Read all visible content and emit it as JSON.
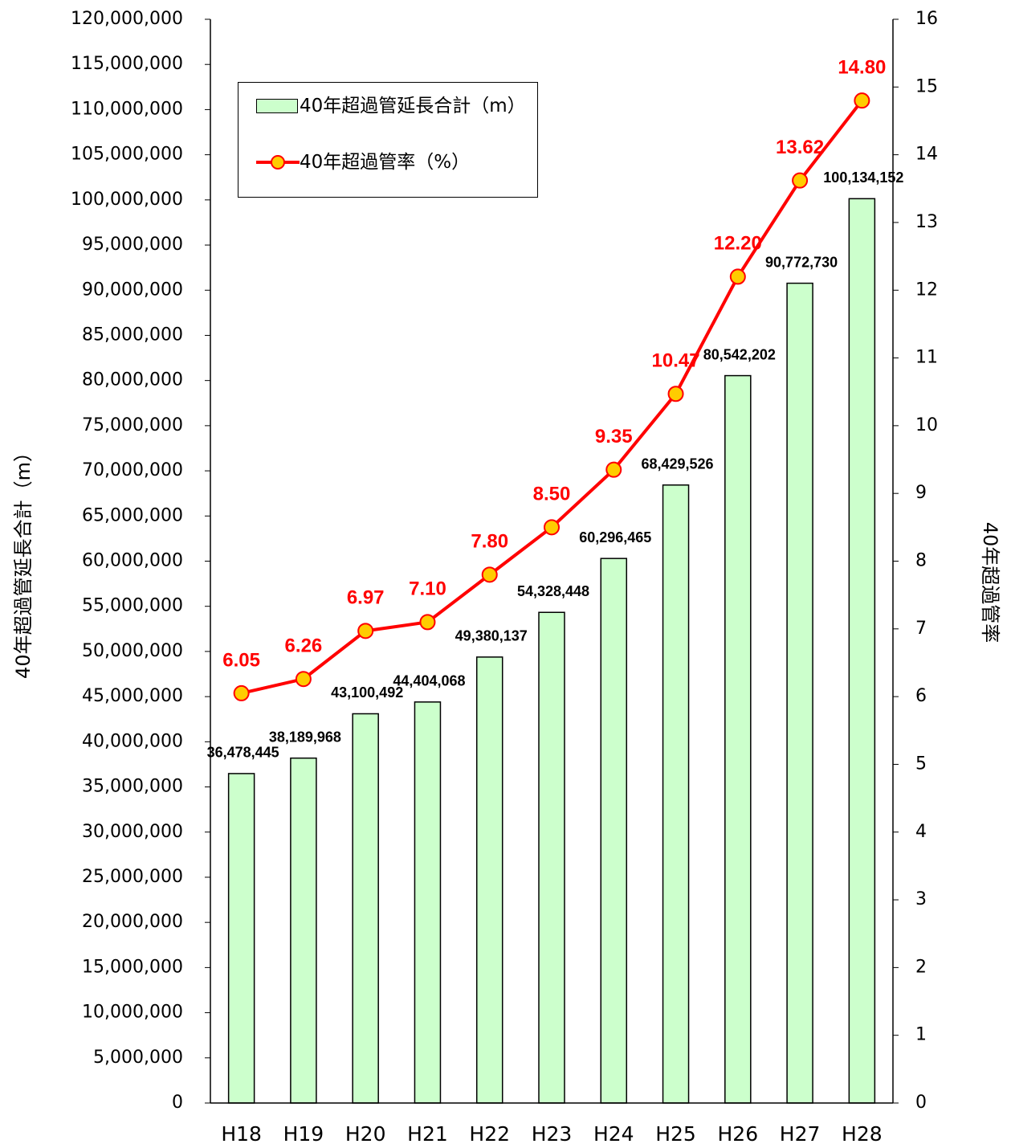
{
  "chart_data": {
    "type": "bar-line",
    "y_label": "40年超過管延長合計（m）",
    "y2_label": "40年超過管率",
    "categories": [
      "H18",
      "H19",
      "H20",
      "H21",
      "H22",
      "H23",
      "H24",
      "H25",
      "H26",
      "H27",
      "H28"
    ],
    "series": [
      {
        "name": "40年超過管延長合計（m）",
        "type": "bar",
        "color": "#ccffcc",
        "values": [
          36478445,
          38189968,
          43100492,
          44404068,
          49380137,
          54328448,
          60296465,
          68429526,
          80542202,
          90772730,
          100134152
        ],
        "value_labels": [
          "36,478,445",
          "38,189,968",
          "43,100,492",
          "44,404,068",
          "49,380,137",
          "54,328,448",
          "60,296,465",
          "68,429,526",
          "80,542,202",
          "90,772,730",
          "100,134,152"
        ]
      },
      {
        "name": "40年超過管率（%）",
        "type": "line",
        "axis": "y2",
        "color": "#ff0000",
        "marker_color": "#ffcc00",
        "values": [
          6.05,
          6.26,
          6.97,
          7.1,
          7.8,
          8.5,
          9.35,
          10.47,
          12.2,
          13.62,
          14.8
        ],
        "value_labels": [
          "6.05",
          "6.26",
          "6.97",
          "7.10",
          "7.80",
          "8.50",
          "9.35",
          "10.47",
          "12.20",
          "13.62",
          "14.80"
        ]
      }
    ],
    "ylim": [
      0,
      120000000
    ],
    "yticks": [
      0,
      {
        "value": 5000000,
        "label": "5,000,000"
      },
      {
        "value": 10000000,
        "label": "10,000,000"
      },
      {
        "value": 15000000,
        "label": "15,000,000"
      },
      {
        "value": 20000000,
        "label": "20,000,000"
      },
      {
        "value": 25000000,
        "label": "25,000,000"
      },
      {
        "value": 30000000,
        "label": "30,000,000"
      },
      {
        "value": 35000000,
        "label": "35,000,000"
      },
      {
        "value": 40000000,
        "label": "40,000,000"
      },
      {
        "value": 45000000,
        "label": "45,000,000"
      },
      {
        "value": 50000000,
        "label": "50,000,000"
      },
      {
        "value": 55000000,
        "label": "55,000,000"
      },
      {
        "value": 60000000,
        "label": "60,000,000"
      },
      {
        "value": 65000000,
        "label": "65,000,000"
      },
      {
        "value": 70000000,
        "label": "70,000,000"
      },
      {
        "value": 75000000,
        "label": "75,000,000"
      },
      {
        "value": 80000000,
        "label": "80,000,000"
      },
      {
        "value": 85000000,
        "label": "85,000,000"
      },
      {
        "value": 90000000,
        "label": "90,000,000"
      },
      {
        "value": 95000000,
        "label": "95,000,000"
      },
      {
        "value": 100000000,
        "label": "100,000,000"
      },
      {
        "value": 105000000,
        "label": "105,000,000"
      },
      {
        "value": 110000000,
        "label": "110,000,000"
      },
      {
        "value": 115000000,
        "label": "115,000,000"
      },
      {
        "value": 120000000,
        "label": "120,000,000"
      }
    ],
    "y2lim": [
      0,
      16
    ],
    "y2ticks": [
      0,
      1,
      2,
      3,
      4,
      5,
      6,
      7,
      8,
      9,
      10,
      11,
      12,
      13,
      14,
      15,
      16
    ],
    "grid": false
  }
}
